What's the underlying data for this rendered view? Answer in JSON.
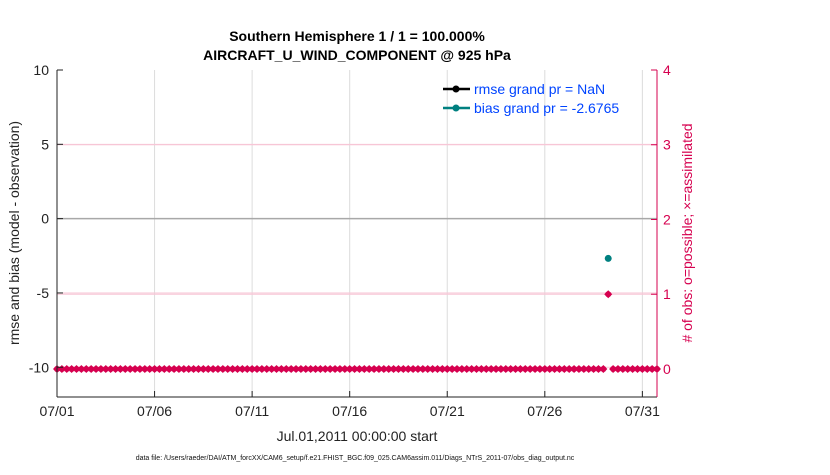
{
  "chart_data": {
    "type": "line",
    "title_line1": "Southern Hemisphere 1 / 1 = 100.000%",
    "title_line2": "AIRCRAFT_U_WIND_COMPONENT @ 925 hPa",
    "ylabel": "rmse and bias (model - observation)",
    "ylabel_right": "# of obs: o=possible; ×=assimilated",
    "xlabel": "Jul.01,2011 00:00:00 start",
    "footer": "data file: /Users/raeder/DAI/ATM_forcXX/CAM6_setup/f.e21.FHIST_BGC.f09_025.CAM6assim.011/Diags_NTrS_2011-07/obs_diag_output.nc",
    "xlim": [
      "07/01 00:00",
      "07/31 18:00"
    ],
    "ylim": [
      -12,
      10
    ],
    "ylim_right": [
      -0.375,
      4
    ],
    "xticks": [
      "07/01",
      "07/06",
      "07/11",
      "07/16",
      "07/21",
      "07/26",
      "07/31"
    ],
    "xtick_days": [
      1,
      6,
      11,
      16,
      21,
      26,
      31
    ],
    "yticks": [
      "10",
      "5",
      "0",
      "-5",
      "-10"
    ],
    "ytick_values": [
      10,
      5,
      0,
      -5,
      -10
    ],
    "yticks_right": [
      "4",
      "3",
      "2",
      "1",
      "0"
    ],
    "ytick_right_values": [
      4,
      3,
      2,
      1,
      0
    ],
    "grid": true,
    "legend_placement": "top-right",
    "series": [
      {
        "name": "rmse grand pr = NaN",
        "color": "#000000",
        "points": []
      },
      {
        "name": "bias grand pr = -2.6765",
        "color": "#008080",
        "points": [
          {
            "day": 29.25,
            "value": -2.6765
          }
        ]
      }
    ],
    "obs_count": {
      "color": "#D6004F",
      "interval_hours": 6,
      "start_day": 1,
      "end_day": 31.75,
      "default": 0,
      "nonzero": [
        {
          "day": 29.25,
          "count": 1
        }
      ]
    }
  }
}
